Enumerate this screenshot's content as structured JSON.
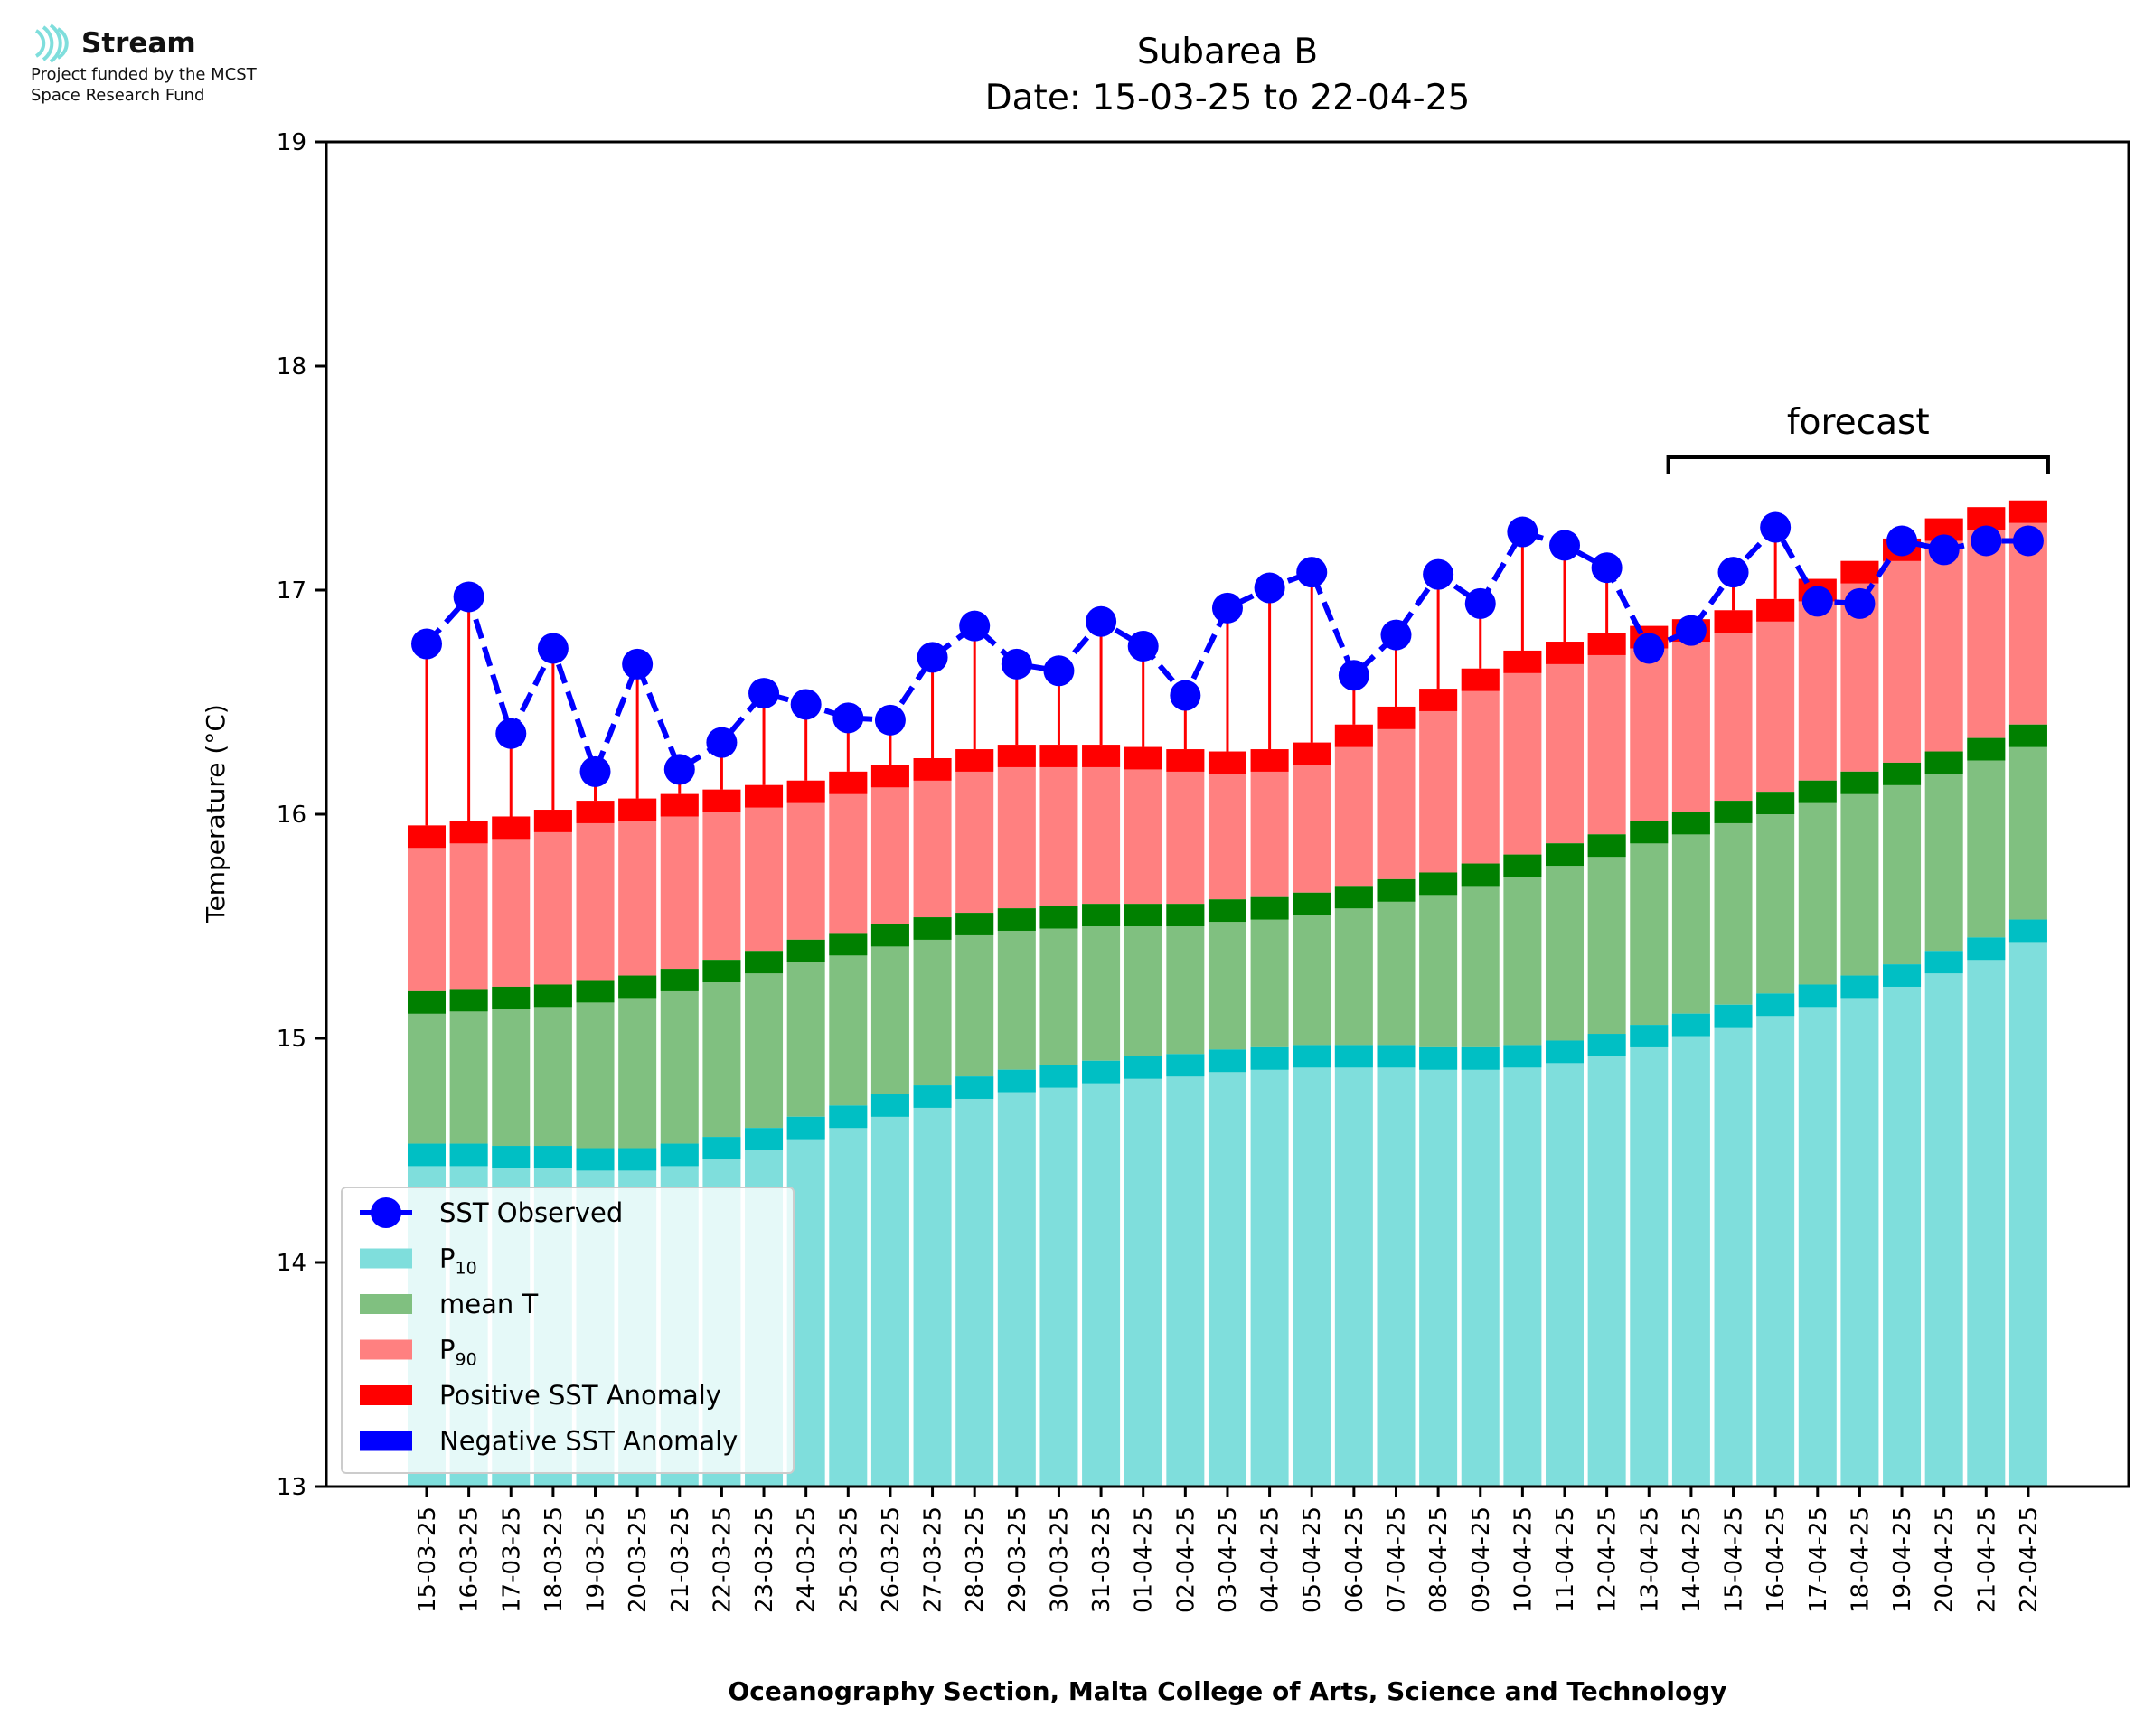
{
  "logo": {
    "name": "Stream",
    "funding_line1": "Project funded by the MCST",
    "funding_line2": "Space Research Fund",
    "color": "#7fdedc"
  },
  "chart_data": {
    "type": "bar",
    "title": "Subarea B",
    "subtitle": "Date: 15-03-25 to 22-04-25",
    "ylabel": "Temperature (°C)",
    "xlabel": "Oceanography Section, Malta College of Arts, Science and Technology",
    "ylim": [
      13,
      19
    ],
    "yticks": [
      "13",
      "14",
      "15",
      "16",
      "17",
      "18",
      "19"
    ],
    "forecast_label": "forecast",
    "forecast_from": "14-04-25",
    "forecast_to": "22-04-25",
    "categories": [
      "15-03-25",
      "16-03-25",
      "17-03-25",
      "18-03-25",
      "19-03-25",
      "20-03-25",
      "21-03-25",
      "22-03-25",
      "23-03-25",
      "24-03-25",
      "25-03-25",
      "26-03-25",
      "27-03-25",
      "28-03-25",
      "29-03-25",
      "30-03-25",
      "31-03-25",
      "01-04-25",
      "02-04-25",
      "03-04-25",
      "04-04-25",
      "05-04-25",
      "06-04-25",
      "07-04-25",
      "08-04-25",
      "09-04-25",
      "10-04-25",
      "11-04-25",
      "12-04-25",
      "13-04-25",
      "14-04-25",
      "15-04-25",
      "16-04-25",
      "17-04-25",
      "18-04-25",
      "19-04-25",
      "20-04-25",
      "21-04-25",
      "22-04-25"
    ],
    "series": [
      {
        "name": "P10",
        "color": "#7fdedc",
        "edge_color": "#00bfc4",
        "values": [
          14.53,
          14.53,
          14.52,
          14.52,
          14.51,
          14.51,
          14.53,
          14.56,
          14.6,
          14.65,
          14.7,
          14.75,
          14.79,
          14.83,
          14.86,
          14.88,
          14.9,
          14.92,
          14.93,
          14.95,
          14.96,
          14.97,
          14.97,
          14.97,
          14.96,
          14.96,
          14.97,
          14.99,
          15.02,
          15.06,
          15.11,
          15.15,
          15.2,
          15.24,
          15.28,
          15.33,
          15.39,
          15.45,
          15.53
        ]
      },
      {
        "name": "mean T",
        "color": "#80c080",
        "edge_color": "#008000",
        "values": [
          15.21,
          15.22,
          15.23,
          15.24,
          15.26,
          15.28,
          15.31,
          15.35,
          15.39,
          15.44,
          15.47,
          15.51,
          15.54,
          15.56,
          15.58,
          15.59,
          15.6,
          15.6,
          15.6,
          15.62,
          15.63,
          15.65,
          15.68,
          15.71,
          15.74,
          15.78,
          15.82,
          15.87,
          15.91,
          15.97,
          16.01,
          16.06,
          16.1,
          16.15,
          16.19,
          16.23,
          16.28,
          16.34,
          16.4
        ]
      },
      {
        "name": "P90",
        "color": "#ff8080",
        "edge_color": "#ff0000",
        "values": [
          15.95,
          15.97,
          15.99,
          16.02,
          16.06,
          16.07,
          16.09,
          16.11,
          16.13,
          16.15,
          16.19,
          16.22,
          16.25,
          16.29,
          16.31,
          16.31,
          16.31,
          16.3,
          16.29,
          16.28,
          16.29,
          16.32,
          16.4,
          16.48,
          16.56,
          16.65,
          16.73,
          16.77,
          16.81,
          16.84,
          16.87,
          16.91,
          16.96,
          17.05,
          17.13,
          17.23,
          17.32,
          17.37,
          17.4
        ]
      },
      {
        "name": "SST Observed",
        "color": "#0000ff",
        "values": [
          16.76,
          16.97,
          16.36,
          16.74,
          16.19,
          16.67,
          16.2,
          16.32,
          16.54,
          16.49,
          16.43,
          16.42,
          16.7,
          16.84,
          16.67,
          16.64,
          16.86,
          16.75,
          16.53,
          16.92,
          17.01,
          17.08,
          16.62,
          16.8,
          17.07,
          16.94,
          17.26,
          17.2,
          17.1,
          16.74,
          16.82,
          17.08,
          17.28,
          16.95,
          16.94,
          17.22,
          17.18,
          17.22,
          17.22
        ]
      }
    ],
    "legend": {
      "placement": "lower-left",
      "entries": [
        {
          "label": "SST Observed",
          "color": "#0000ff",
          "kind": "line-marker"
        },
        {
          "label": "P",
          "sub": "10",
          "color": "#7fdedc",
          "kind": "patch"
        },
        {
          "label": "mean T",
          "color": "#80c080",
          "kind": "patch"
        },
        {
          "label": "P",
          "sub": "90",
          "color": "#ff8080",
          "kind": "patch"
        },
        {
          "label": "Positive SST Anomaly",
          "color": "#ff0000",
          "kind": "patch"
        },
        {
          "label": "Negative SST Anomaly",
          "color": "#0000ff",
          "kind": "patch"
        }
      ]
    }
  }
}
